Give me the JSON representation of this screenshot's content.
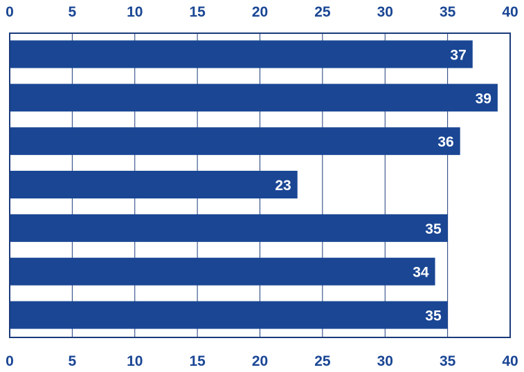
{
  "chart_data": {
    "type": "bar",
    "orientation": "horizontal",
    "categories": [
      "",
      "",
      "",
      "",
      "",
      "",
      ""
    ],
    "values": [
      37,
      39,
      36,
      23,
      35,
      34,
      35
    ],
    "title": "",
    "xlabel": "",
    "ylabel": "",
    "xlim": [
      0,
      40
    ],
    "x_ticks": [
      "0",
      "5",
      "10",
      "15",
      "20",
      "25",
      "30",
      "35",
      "40"
    ],
    "axis_labels_position": "top and bottom",
    "grid": "vertical",
    "legend": "none",
    "colors": {
      "bar": "#1a4694",
      "axis_text": "#1a4694",
      "grid": "#1a3a7a",
      "data_label": "#ffffff"
    }
  }
}
